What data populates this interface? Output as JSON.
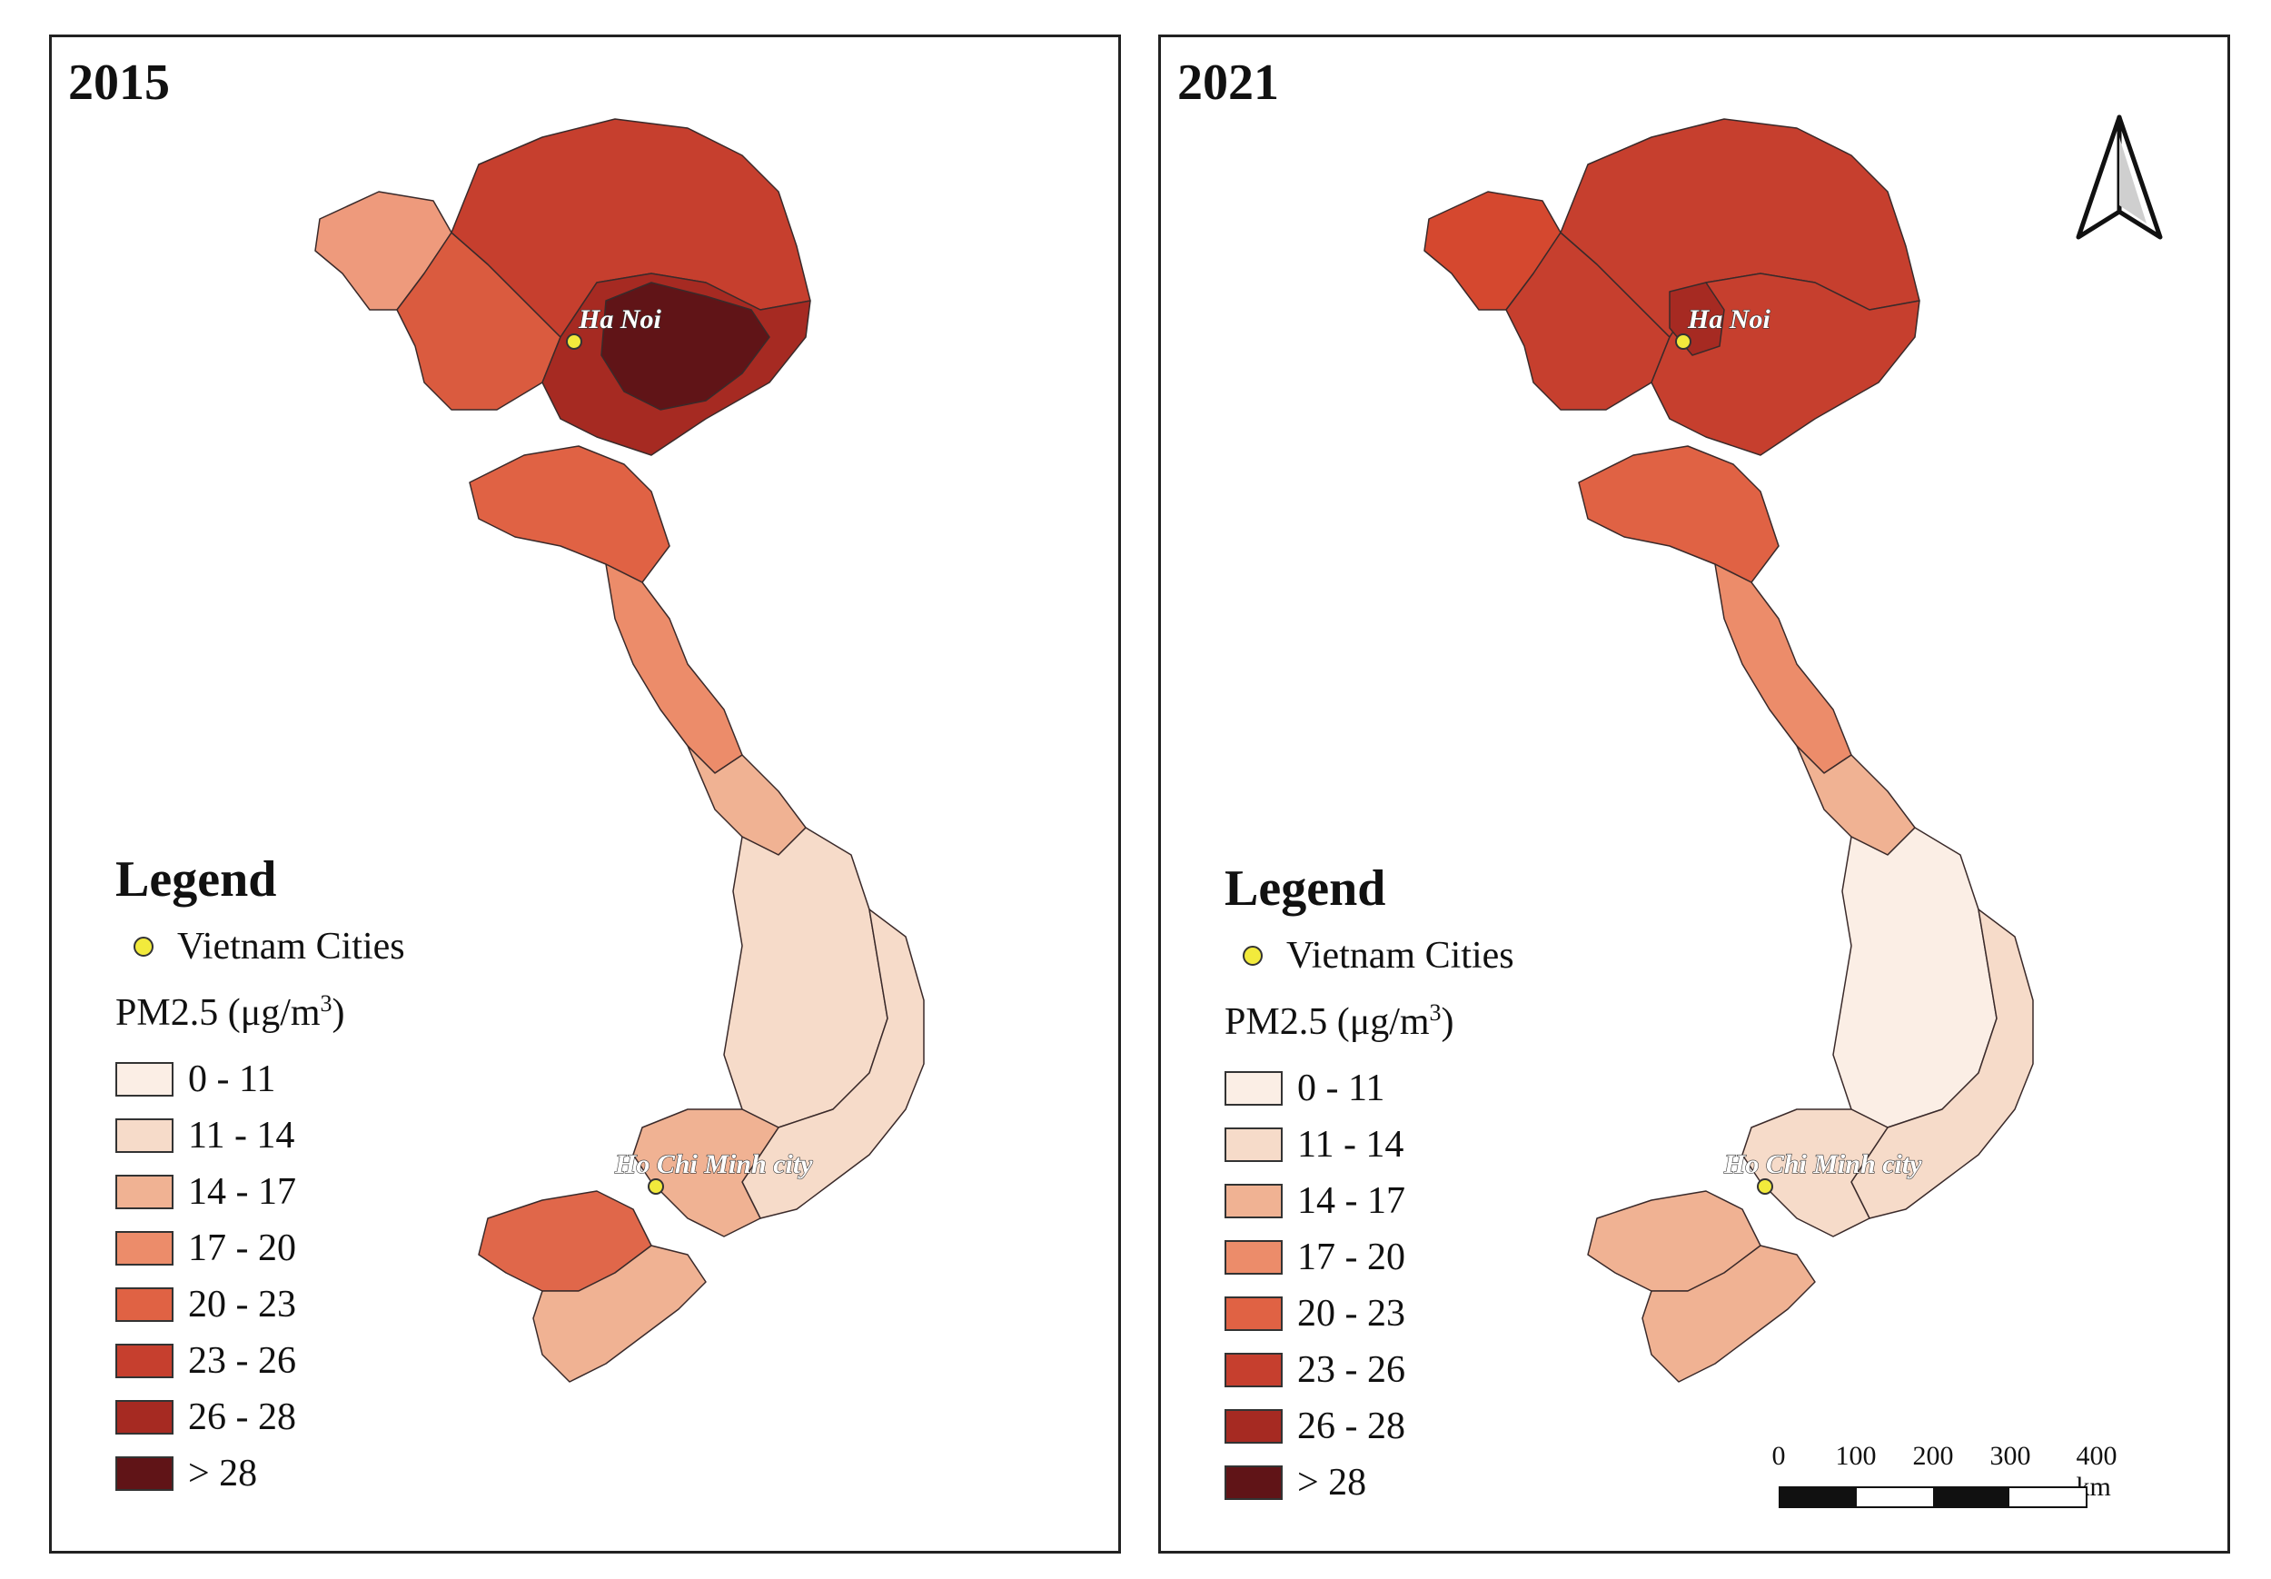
{
  "panels": [
    {
      "year": "2015",
      "regions": {
        "northwest_far": "#ee9a7c",
        "northwest_mid": "#da5b3f",
        "north_main": "#c63f2e",
        "north_inner": "#a62a22",
        "hanoi_core": "#601417",
        "north_central": "#e06244",
        "central_strip": "#ec8c6a",
        "central_lower": "#f0b293",
        "highlands": "#f6dbc9",
        "south_east_coast": "#f6dbc9",
        "south_east": "#f0b293",
        "mekong_west": "#e0674a",
        "mekong_south": "#f0b293"
      }
    },
    {
      "year": "2021",
      "regions": {
        "northwest_far": "#d5482f",
        "northwest_mid": "#c63f2e",
        "north_main": "#c63f2e",
        "north_inner": "#c63f2e",
        "hanoi_core": "#a62a22",
        "north_central": "#e06244",
        "central_strip": "#ec8c6a",
        "central_lower": "#f0b293",
        "highlands": "#fbeee5",
        "south_east_coast": "#f6dbc9",
        "south_east": "#f6dbc9",
        "mekong_west": "#f0b293",
        "mekong_south": "#f0b293"
      }
    }
  ],
  "cities": {
    "hanoi": "Ha Noi",
    "hcmc": "Ho Chi Minh city"
  },
  "legend": {
    "title": "Legend",
    "city_item": "Vietnam Cities",
    "subtitle_prefix": "PM2.5 (μg/m",
    "subtitle_sup": "3",
    "subtitle_suffix": ")",
    "classes": [
      {
        "label": "0 - 11",
        "color": "#fbeee5"
      },
      {
        "label": "11 - 14",
        "color": "#f6dbc9"
      },
      {
        "label": "14 - 17",
        "color": "#f0b293"
      },
      {
        "label": "17 - 20",
        "color": "#ec8c6a"
      },
      {
        "label": "20 - 23",
        "color": "#e06244"
      },
      {
        "label": "23 - 26",
        "color": "#c63f2e"
      },
      {
        "label": "26 - 28",
        "color": "#a62a22"
      },
      {
        "label": "> 28",
        "color": "#601417"
      }
    ]
  },
  "scalebar": {
    "labels": [
      "0",
      "100",
      "200",
      "300",
      "400 km"
    ]
  },
  "north_arrow": "north-arrow-icon"
}
